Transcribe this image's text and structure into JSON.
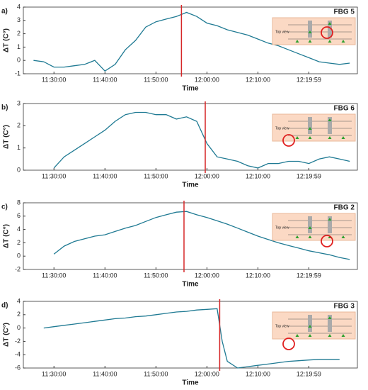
{
  "chart_data": [
    {
      "type": "line",
      "label": "a)",
      "title": "FBG 5",
      "ylabel": "ΔT (C°)",
      "xlabel": "Time",
      "inset_label": "Top view",
      "color": "#1f7a93",
      "marker_x": "11:55:00",
      "marker_color": "#d62728",
      "xlim": [
        "11:24:00",
        "12:29:30"
      ],
      "xticks": [
        "11:30:00",
        "11:40:00",
        "11:50:00",
        "12:00:00",
        "12:10:00",
        "12:19:59"
      ],
      "ylim": [
        -1,
        4
      ],
      "yticks": [
        -1,
        0,
        1,
        2,
        3,
        4
      ],
      "x": [
        "11:26:00",
        "11:28:00",
        "11:30:00",
        "11:32:00",
        "11:34:00",
        "11:36:00",
        "11:38:00",
        "11:40:00",
        "11:42:00",
        "11:44:00",
        "11:46:00",
        "11:48:00",
        "11:50:00",
        "11:52:00",
        "11:54:00",
        "11:56:00",
        "11:58:00",
        "12:00:00",
        "12:02:00",
        "12:04:00",
        "12:06:00",
        "12:08:00",
        "12:10:00",
        "12:12:00",
        "12:14:00",
        "12:16:00",
        "12:18:00",
        "12:20:00",
        "12:22:00",
        "12:24:00",
        "12:26:00",
        "12:28:00"
      ],
      "values": [
        0,
        -0.1,
        -0.5,
        -0.5,
        -0.4,
        -0.3,
        0.0,
        -0.8,
        -0.3,
        0.8,
        1.5,
        2.5,
        2.9,
        3.1,
        3.3,
        3.6,
        3.3,
        2.8,
        2.6,
        2.3,
        2.1,
        1.9,
        1.6,
        1.3,
        1.1,
        0.8,
        0.5,
        0.2,
        -0.1,
        -0.2,
        -0.3,
        -0.2
      ]
    },
    {
      "type": "line",
      "label": "b)",
      "title": "FBG 6",
      "ylabel": "ΔT (C°)",
      "xlabel": "Time",
      "inset_label": "Top view",
      "color": "#1f7a93",
      "marker_x": "11:59:40",
      "marker_color": "#d62728",
      "xlim": [
        "11:24:00",
        "12:29:30"
      ],
      "xticks": [
        "11:30:00",
        "11:40:00",
        "11:50:00",
        "12:00:00",
        "12:10:00",
        "12:19:59"
      ],
      "ylim": [
        0,
        3
      ],
      "yticks": [
        0,
        1,
        2,
        3
      ],
      "x": [
        "11:26:00",
        "11:28:00",
        "11:30:00",
        "11:32:00",
        "11:34:00",
        "11:36:00",
        "11:38:00",
        "11:40:00",
        "11:42:00",
        "11:44:00",
        "11:46:00",
        "11:48:00",
        "11:50:00",
        "11:52:00",
        "11:54:00",
        "11:56:00",
        "11:58:00",
        "12:00:00",
        "12:02:00",
        "12:04:00",
        "12:06:00",
        "12:08:00",
        "12:10:00",
        "12:12:00",
        "12:14:00",
        "12:16:00",
        "12:18:00",
        "12:20:00",
        "12:22:00",
        "12:24:00",
        "12:26:00",
        "12:28:00"
      ],
      "values": [
        null,
        null,
        0.1,
        0.6,
        0.9,
        1.2,
        1.5,
        1.8,
        2.2,
        2.5,
        2.6,
        2.6,
        2.5,
        2.5,
        2.3,
        2.4,
        2.2,
        1.2,
        0.6,
        0.5,
        0.4,
        0.2,
        0.1,
        0.3,
        0.3,
        0.4,
        0.4,
        0.3,
        0.5,
        0.6,
        0.5,
        0.4
      ]
    },
    {
      "type": "line",
      "label": "c)",
      "title": "FBG 2",
      "ylabel": "ΔT (C°)",
      "xlabel": "Time",
      "inset_label": "Top view",
      "color": "#1f7a93",
      "marker_x": "11:55:30",
      "marker_color": "#d62728",
      "xlim": [
        "11:24:00",
        "12:29:30"
      ],
      "xticks": [
        "11:30:00",
        "11:40:00",
        "11:50:00",
        "12:00:00",
        "12:10:00",
        "12:19:59"
      ],
      "ylim": [
        -2,
        8
      ],
      "yticks": [
        -2,
        0,
        2,
        4,
        6,
        8
      ],
      "x": [
        "11:26:00",
        "11:28:00",
        "11:30:00",
        "11:32:00",
        "11:34:00",
        "11:36:00",
        "11:38:00",
        "11:40:00",
        "11:42:00",
        "11:44:00",
        "11:46:00",
        "11:48:00",
        "11:50:00",
        "11:52:00",
        "11:54:00",
        "11:56:00",
        "11:58:00",
        "12:00:00",
        "12:02:00",
        "12:04:00",
        "12:06:00",
        "12:08:00",
        "12:10:00",
        "12:12:00",
        "12:14:00",
        "12:16:00",
        "12:18:00",
        "12:20:00",
        "12:22:00",
        "12:24:00",
        "12:26:00",
        "12:28:00"
      ],
      "values": [
        null,
        null,
        0.3,
        1.5,
        2.2,
        2.6,
        3.0,
        3.2,
        3.7,
        4.2,
        4.6,
        5.2,
        5.8,
        6.2,
        6.6,
        6.7,
        6.2,
        5.8,
        5.3,
        4.8,
        4.2,
        3.6,
        3.0,
        2.5,
        2.0,
        1.6,
        1.2,
        0.8,
        0.5,
        0.2,
        -0.2,
        -0.5
      ]
    },
    {
      "type": "line",
      "label": "d)",
      "title": "FBG 3",
      "ylabel": "ΔT (C°)",
      "xlabel": "Time",
      "inset_label": "Top view",
      "color": "#1f7a93",
      "marker_x": "12:02:30",
      "marker_color": "#d62728",
      "xlim": [
        "11:24:00",
        "12:29:30"
      ],
      "xticks": [
        "11:30:00",
        "11:40:00",
        "11:50:00",
        "12:00:00",
        "12:10:00",
        "12:19:59"
      ],
      "ylim": [
        -6,
        4
      ],
      "yticks": [
        -6,
        -4,
        -2,
        0,
        2,
        4
      ],
      "x": [
        "11:26:00",
        "11:28:00",
        "11:30:00",
        "11:32:00",
        "11:34:00",
        "11:36:00",
        "11:38:00",
        "11:40:00",
        "11:42:00",
        "11:44:00",
        "11:46:00",
        "11:48:00",
        "11:50:00",
        "11:52:00",
        "11:54:00",
        "11:56:00",
        "11:58:00",
        "12:00:00",
        "12:02:00",
        "12:03:00",
        "12:04:00",
        "12:06:00",
        "12:08:00",
        "12:10:00",
        "12:12:00",
        "12:14:00",
        "12:16:00",
        "12:18:00",
        "12:20:00",
        "12:22:00",
        "12:24:00",
        "12:26:00"
      ],
      "values": [
        null,
        0,
        0.2,
        0.4,
        0.6,
        0.8,
        1.0,
        1.2,
        1.4,
        1.5,
        1.7,
        1.8,
        2.0,
        2.2,
        2.4,
        2.5,
        2.7,
        2.8,
        2.9,
        -2.0,
        -5.0,
        -6.0,
        -5.8,
        -5.6,
        -5.4,
        -5.2,
        -5.0,
        -4.9,
        -4.8,
        -4.7,
        -4.7,
        -4.7
      ]
    }
  ]
}
